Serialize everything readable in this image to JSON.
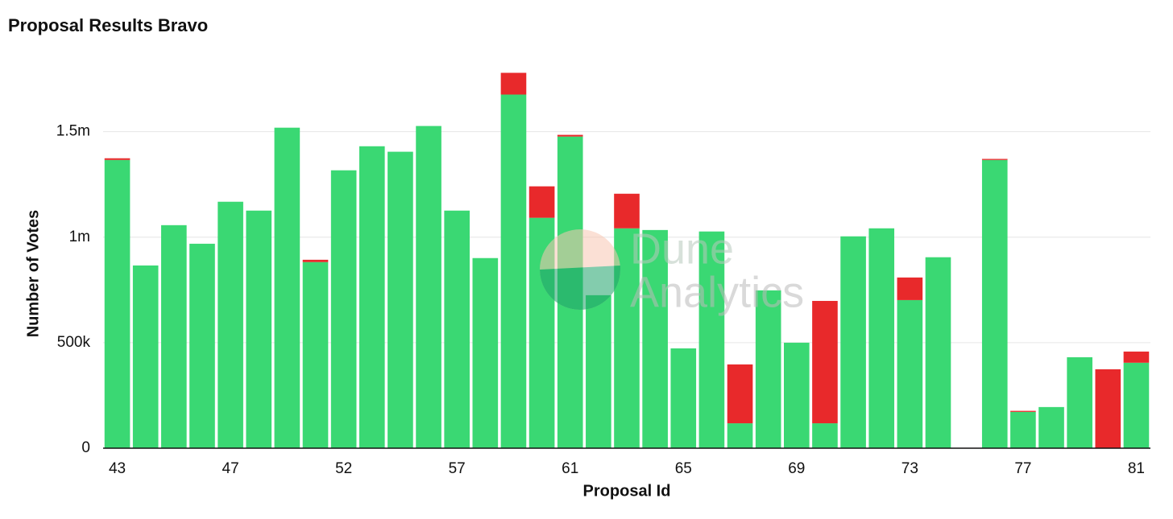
{
  "chart_data": {
    "type": "stacked_bar",
    "title": "Proposal Results Bravo",
    "x_label": "Proposal Id",
    "y_label": "Number of Votes",
    "watermark": [
      "Dune",
      "Analytics"
    ],
    "categories": [
      "43",
      null,
      null,
      null,
      "47",
      null,
      null,
      null,
      "52",
      null,
      null,
      null,
      "57",
      null,
      null,
      null,
      "61",
      null,
      null,
      null,
      "65",
      null,
      null,
      null,
      "69",
      null,
      null,
      null,
      "73",
      null,
      null,
      null,
      "77",
      null,
      null,
      null,
      "81"
    ],
    "series": [
      {
        "color": "#3ad873",
        "values": [
          1366000,
          866000,
          1057000,
          969000,
          1168000,
          1126000,
          1519000,
          882000,
          1317000,
          1431000,
          1405000,
          1527000,
          1126000,
          901000,
          1676000,
          1092000,
          1477000,
          725000,
          1042000,
          1034000,
          473000,
          1027000,
          118000,
          748000,
          500000,
          118000,
          1004000,
          1042000,
          702000,
          905000,
          0,
          1366000,
          172000,
          195000,
          431000,
          0,
          405000
        ]
      },
      {
        "color": "#e8292b",
        "values": [
          8000,
          0,
          0,
          0,
          0,
          0,
          0,
          11000,
          0,
          0,
          0,
          0,
          0,
          0,
          103000,
          149000,
          8000,
          0,
          164000,
          0,
          0,
          0,
          279000,
          0,
          0,
          580000,
          0,
          0,
          107000,
          0,
          2000,
          5000,
          5000,
          0,
          0,
          374000,
          53000
        ]
      }
    ],
    "ylim": [
      0,
      1800000
    ],
    "yticks": [
      0,
      {
        "value": 500000,
        "label": "500k"
      },
      {
        "value": 1000000,
        "label": "1m"
      },
      {
        "value": 1500000,
        "label": "1.5m"
      }
    ],
    "grid": true
  }
}
